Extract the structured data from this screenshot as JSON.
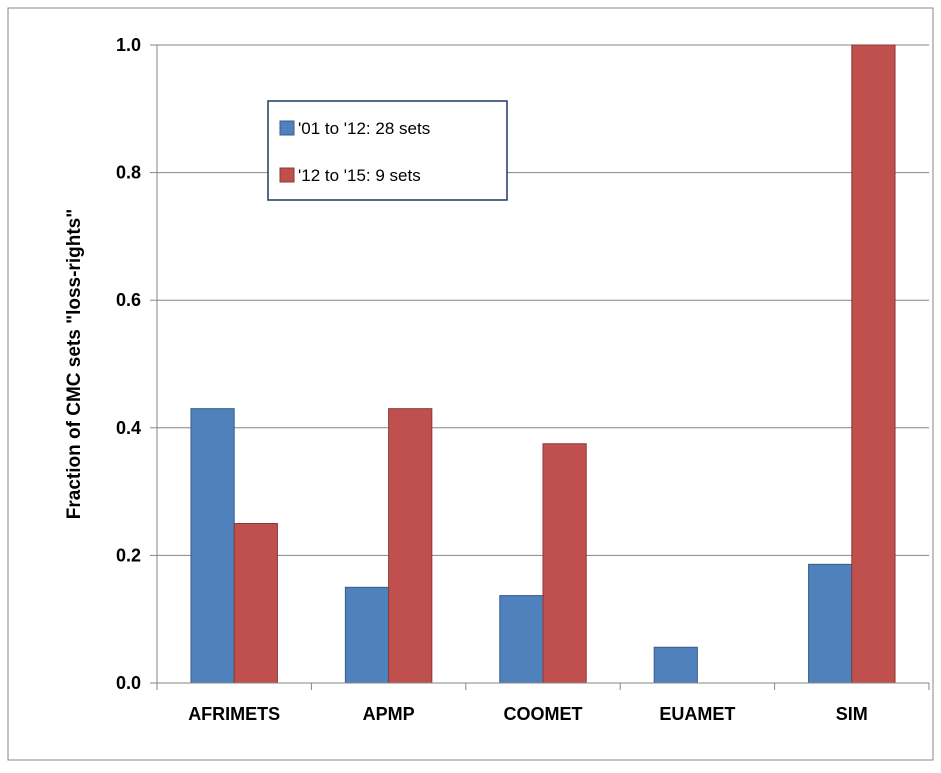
{
  "chart_data": {
    "type": "bar",
    "title": "",
    "xlabel": "",
    "ylabel": "Fraction of CMC sets \"loss-rights\"",
    "categories": [
      "AFRIMETS",
      "APMP",
      "COOMET",
      "EUAMET",
      "SIM"
    ],
    "series": [
      {
        "name": "'01 to '12: 28 sets",
        "color": "#4F81BD",
        "values": [
          0.43,
          0.15,
          0.137,
          0.056,
          0.186
        ]
      },
      {
        "name": "'12 to '15: 9 sets",
        "color": "#C0504D",
        "values": [
          0.25,
          0.43,
          0.375,
          0.0,
          1.0
        ]
      }
    ],
    "ylim": [
      0,
      1.0
    ],
    "yticks": [
      "0.0",
      "0.2",
      "0.4",
      "0.6",
      "0.8",
      "1.0"
    ],
    "grid": true,
    "legend_position": "top-left inside plot"
  }
}
